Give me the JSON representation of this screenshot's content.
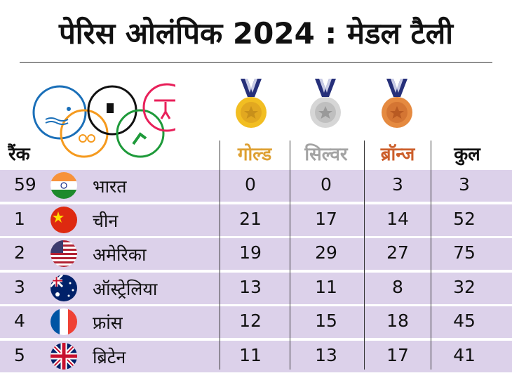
{
  "title": "पेरिस ओलंपिक 2024 : मेडल टैली",
  "headers": {
    "rank": "रैंक",
    "gold": "गोल्ड",
    "silver": "सिल्वर",
    "bronze": "ब्रॉन्ज",
    "total": "कुल"
  },
  "colors": {
    "gold": "#dea032",
    "silver": "#a3a3a3",
    "bronze": "#cc5e2a",
    "row": "#dcd1ea"
  },
  "rows": [
    {
      "rank": "59",
      "country": "भारत",
      "flag": "india-flag",
      "gold": "0",
      "silver": "0",
      "bronze": "3",
      "total": "3"
    },
    {
      "rank": "1",
      "country": "चीन",
      "flag": "china-flag",
      "gold": "21",
      "silver": "17",
      "bronze": "14",
      "total": "52"
    },
    {
      "rank": "2",
      "country": "अमेरिका",
      "flag": "usa-flag",
      "gold": "19",
      "silver": "29",
      "bronze": "27",
      "total": "75"
    },
    {
      "rank": "3",
      "country": "ऑस्ट्रेलिया",
      "flag": "australia-flag",
      "gold": "13",
      "silver": "11",
      "bronze": "8",
      "total": "32"
    },
    {
      "rank": "4",
      "country": "फ्रांस",
      "flag": "france-flag",
      "gold": "12",
      "silver": "15",
      "bronze": "18",
      "total": "45"
    },
    {
      "rank": "5",
      "country": "ब्रिटेन",
      "flag": "uk-flag",
      "gold": "11",
      "silver": "13",
      "bronze": "17",
      "total": "41"
    }
  ]
}
